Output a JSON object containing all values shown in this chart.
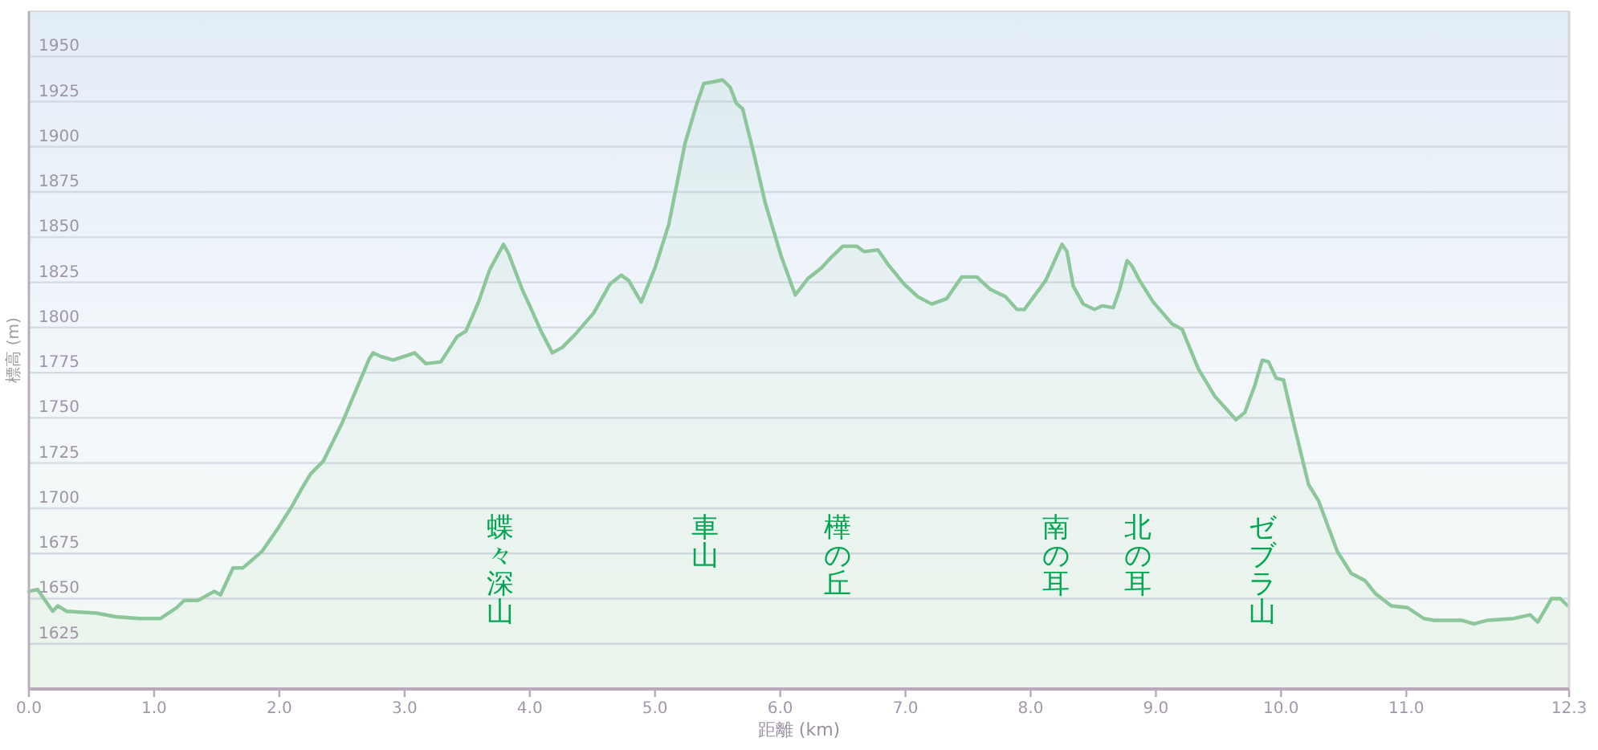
{
  "chart_data": {
    "type": "area",
    "xlabel": "距離 (km)",
    "ylabel": "標高 (m)",
    "color": "#8cc69a",
    "x": [
      0,
      0.07,
      0.19,
      0.23,
      0.3,
      0.54,
      0.69,
      0.88,
      1.05,
      1.18,
      1.24,
      1.35,
      1.48,
      1.53,
      1.63,
      1.71,
      1.86,
      1.99,
      2.1,
      2.18,
      2.25,
      2.35,
      2.5,
      2.72,
      2.75,
      2.81,
      2.91,
      3.04,
      3.08,
      3.17,
      3.29,
      3.42,
      3.49,
      3.59,
      3.68,
      3.79,
      3.83,
      3.94,
      4.0,
      4.09,
      4.18,
      4.26,
      4.36,
      4.51,
      4.64,
      4.73,
      4.79,
      4.89,
      5.0,
      5.11,
      5.24,
      5.33,
      5.39,
      5.47,
      5.54,
      5.6,
      5.65,
      5.7,
      5.79,
      5.88,
      6.01,
      6.12,
      6.22,
      6.33,
      6.41,
      6.5,
      6.61,
      6.67,
      6.78,
      6.86,
      6.99,
      7.1,
      7.21,
      7.33,
      7.45,
      7.57,
      7.68,
      7.8,
      7.89,
      7.95,
      8.12,
      8.25,
      8.29,
      8.34,
      8.42,
      8.51,
      8.57,
      8.66,
      8.71,
      8.77,
      8.81,
      8.87,
      8.98,
      9.13,
      9.21,
      9.34,
      9.47,
      9.64,
      9.71,
      9.79,
      9.85,
      9.9,
      9.96,
      10.02,
      10.09,
      10.22,
      10.3,
      10.45,
      10.56,
      10.67,
      10.75,
      10.88,
      11.01,
      11.14,
      11.22,
      11.44,
      11.54,
      11.65,
      11.86,
      11.99,
      12.05,
      12.16,
      12.23,
      12.29
    ],
    "values": [
      1654,
      1655,
      1643,
      1646,
      1643,
      1642,
      1640,
      1639,
      1639,
      1645,
      1649,
      1649,
      1654,
      1652,
      1667,
      1667,
      1676,
      1689,
      1701,
      1711,
      1719,
      1726,
      1747,
      1783,
      1786,
      1784,
      1782,
      1785,
      1786,
      1780,
      1781,
      1795,
      1798,
      1814,
      1832,
      1846,
      1841,
      1821,
      1812,
      1798,
      1786,
      1789,
      1796,
      1808,
      1824,
      1829,
      1826,
      1814,
      1833,
      1857,
      1902,
      1923,
      1935,
      1936,
      1937,
      1933,
      1924,
      1921,
      1896,
      1869,
      1839,
      1818,
      1827,
      1833,
      1839,
      1845,
      1845,
      1842,
      1843,
      1835,
      1824,
      1817,
      1813,
      1816,
      1828,
      1828,
      1821,
      1817,
      1810,
      1810,
      1826,
      1846,
      1842,
      1823,
      1813,
      1810,
      1812,
      1811,
      1821,
      1837,
      1834,
      1826,
      1814,
      1802,
      1799,
      1777,
      1762,
      1749,
      1753,
      1768,
      1782,
      1781,
      1772,
      1771,
      1750,
      1713,
      1704,
      1676,
      1664,
      1660,
      1653,
      1646,
      1645,
      1639,
      1638,
      1638,
      1636,
      1638,
      1639,
      1641,
      1637,
      1650,
      1650,
      1646
    ],
    "xlim": [
      0,
      12.3
    ],
    "ylim": [
      1600,
      1975
    ],
    "xticks": [
      {
        "value": 0,
        "label": "0.0"
      },
      {
        "value": 1,
        "label": "1.0"
      },
      {
        "value": 2,
        "label": "2.0"
      },
      {
        "value": 3,
        "label": "3.0"
      },
      {
        "value": 4,
        "label": "4.0"
      },
      {
        "value": 5,
        "label": "5.0"
      },
      {
        "value": 6,
        "label": "6.0"
      },
      {
        "value": 7,
        "label": "7.0"
      },
      {
        "value": 8,
        "label": "8.0"
      },
      {
        "value": 9,
        "label": "9.0"
      },
      {
        "value": 10,
        "label": "10.0"
      },
      {
        "value": 11,
        "label": "11.0"
      },
      {
        "value": 12.3,
        "label": "12.3"
      }
    ],
    "yticks": [
      1625,
      1650,
      1675,
      1700,
      1725,
      1750,
      1775,
      1800,
      1825,
      1850,
      1875,
      1900,
      1925,
      1950
    ],
    "grid": "y",
    "annotations": [
      "蝶々深山",
      "車山",
      "樺の丘",
      "南の耳",
      "北の耳",
      "ゼブラ山"
    ]
  }
}
